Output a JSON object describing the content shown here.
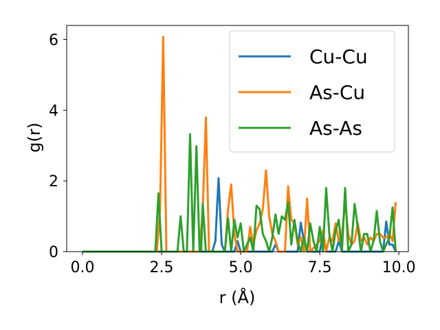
{
  "chart_data": {
    "type": "line",
    "title": "",
    "xlabel": "r (Å)",
    "ylabel": "g(r)",
    "xlim": [
      -0.5,
      10.3
    ],
    "ylim": [
      0,
      6.4
    ],
    "xticks": [
      {
        "value": 0.0,
        "label": "0.0"
      },
      {
        "value": 2.5,
        "label": "2.5"
      },
      {
        "value": 5.0,
        "label": "5.0"
      },
      {
        "value": 7.5,
        "label": "7.5"
      },
      {
        "value": 10.0,
        "label": "10.0"
      }
    ],
    "yticks": [
      {
        "value": 0,
        "label": "0"
      },
      {
        "value": 2,
        "label": "2"
      },
      {
        "value": 4,
        "label": "4"
      },
      {
        "value": 6,
        "label": "6"
      }
    ],
    "grid": false,
    "legend_position": "upper-right",
    "series": [
      {
        "name": "Cu-Cu",
        "color": "#1f77b4",
        "points": [
          [
            0.0,
            0
          ],
          [
            4.1,
            0
          ],
          [
            4.2,
            0.3
          ],
          [
            4.3,
            2.08
          ],
          [
            4.4,
            0.2
          ],
          [
            4.5,
            0
          ],
          [
            4.8,
            0
          ],
          [
            4.9,
            0.3
          ],
          [
            5.0,
            0
          ],
          [
            6.0,
            0
          ],
          [
            6.1,
            0.2
          ],
          [
            6.2,
            0
          ],
          [
            6.8,
            0
          ],
          [
            6.9,
            0.82
          ],
          [
            7.0,
            0.3
          ],
          [
            7.1,
            0
          ],
          [
            7.5,
            0
          ],
          [
            7.6,
            0.5
          ],
          [
            7.7,
            0
          ],
          [
            8.0,
            0
          ],
          [
            8.1,
            0.3
          ],
          [
            8.2,
            0
          ],
          [
            9.5,
            0
          ],
          [
            9.6,
            0.85
          ],
          [
            9.7,
            0.2
          ],
          [
            9.8,
            0.2
          ],
          [
            9.9,
            0
          ]
        ]
      },
      {
        "name": "As-Cu",
        "color": "#ff7f0e",
        "points": [
          [
            0.0,
            0
          ],
          [
            2.35,
            0
          ],
          [
            2.45,
            1.2
          ],
          [
            2.55,
            6.08
          ],
          [
            2.65,
            0
          ],
          [
            3.7,
            0
          ],
          [
            3.8,
            1.2
          ],
          [
            3.9,
            3.8
          ],
          [
            4.0,
            0
          ],
          [
            4.5,
            0
          ],
          [
            4.6,
            1.2
          ],
          [
            4.7,
            1.9
          ],
          [
            4.8,
            0.5
          ],
          [
            4.9,
            0
          ],
          [
            5.2,
            0
          ],
          [
            5.3,
            0.7
          ],
          [
            5.4,
            0.2
          ],
          [
            5.5,
            0.6
          ],
          [
            5.6,
            0.8
          ],
          [
            5.7,
            1.2
          ],
          [
            5.8,
            2.3
          ],
          [
            5.9,
            1.0
          ],
          [
            6.0,
            0.5
          ],
          [
            6.1,
            0.3
          ],
          [
            6.2,
            0
          ],
          [
            6.4,
            0
          ],
          [
            6.5,
            1.85
          ],
          [
            6.6,
            0.9
          ],
          [
            6.7,
            0.8
          ],
          [
            6.8,
            0.2
          ],
          [
            6.9,
            0.4
          ],
          [
            7.0,
            0
          ],
          [
            7.1,
            1.5
          ],
          [
            7.2,
            0
          ],
          [
            7.5,
            0.3
          ],
          [
            7.6,
            0.6
          ],
          [
            7.7,
            0
          ],
          [
            7.8,
            0.4
          ],
          [
            7.9,
            0.3
          ],
          [
            8.0,
            0.8
          ],
          [
            8.1,
            0.3
          ],
          [
            8.2,
            0.5
          ],
          [
            8.3,
            1.4
          ],
          [
            8.4,
            0.5
          ],
          [
            8.5,
            0.2
          ],
          [
            8.6,
            0.3
          ],
          [
            8.7,
            0.8
          ],
          [
            8.8,
            0.3
          ],
          [
            8.9,
            0.4
          ],
          [
            9.0,
            0.2
          ],
          [
            9.1,
            0.4
          ],
          [
            9.2,
            0.3
          ],
          [
            9.3,
            0.5
          ],
          [
            9.4,
            0.5
          ],
          [
            9.5,
            0.4
          ],
          [
            9.6,
            0.4
          ],
          [
            9.7,
            0.5
          ],
          [
            9.8,
            0.3
          ],
          [
            9.9,
            1.4
          ]
        ]
      },
      {
        "name": "As-As",
        "color": "#2ca02c",
        "points": [
          [
            0.0,
            0
          ],
          [
            2.3,
            0
          ],
          [
            2.4,
            1.65
          ],
          [
            2.5,
            0
          ],
          [
            3.0,
            0
          ],
          [
            3.1,
            1.0
          ],
          [
            3.2,
            0
          ],
          [
            3.3,
            0
          ],
          [
            3.4,
            3.32
          ],
          [
            3.5,
            0
          ],
          [
            3.6,
            2.98
          ],
          [
            3.7,
            0
          ],
          [
            3.75,
            0
          ],
          [
            3.8,
            1.35
          ],
          [
            3.9,
            0
          ],
          [
            4.5,
            0
          ],
          [
            4.6,
            0.95
          ],
          [
            4.7,
            0
          ],
          [
            4.8,
            0.9
          ],
          [
            4.9,
            0.4
          ],
          [
            5.0,
            0.8
          ],
          [
            5.1,
            0
          ],
          [
            5.3,
            0.4
          ],
          [
            5.4,
            0
          ],
          [
            5.5,
            1.3
          ],
          [
            5.6,
            1.2
          ],
          [
            5.7,
            0.5
          ],
          [
            5.8,
            0.3
          ],
          [
            5.9,
            0
          ],
          [
            6.0,
            0.4
          ],
          [
            6.1,
            1.05
          ],
          [
            6.2,
            0.5
          ],
          [
            6.3,
            1.0
          ],
          [
            6.4,
            0.9
          ],
          [
            6.5,
            1.4
          ],
          [
            6.6,
            0.2
          ],
          [
            6.7,
            0.9
          ],
          [
            6.8,
            0.3
          ],
          [
            6.9,
            0
          ],
          [
            7.0,
            0.4
          ],
          [
            7.1,
            0
          ],
          [
            7.2,
            0.8
          ],
          [
            7.3,
            0.3
          ],
          [
            7.4,
            0
          ],
          [
            7.5,
            0.7
          ],
          [
            7.6,
            0
          ],
          [
            7.7,
            1.8
          ],
          [
            7.8,
            0.5
          ],
          [
            7.9,
            0
          ],
          [
            8.0,
            0.6
          ],
          [
            8.1,
            0.9
          ],
          [
            8.2,
            0
          ],
          [
            8.3,
            1.8
          ],
          [
            8.4,
            0
          ],
          [
            8.5,
            0.2
          ],
          [
            8.6,
            1.35
          ],
          [
            8.7,
            0.7
          ],
          [
            8.8,
            0
          ],
          [
            8.9,
            0.5
          ],
          [
            9.0,
            0.5
          ],
          [
            9.1,
            0
          ],
          [
            9.2,
            0.3
          ],
          [
            9.3,
            1.15
          ],
          [
            9.4,
            0.3
          ],
          [
            9.5,
            0
          ],
          [
            9.6,
            0.2
          ],
          [
            9.7,
            0.4
          ],
          [
            9.8,
            1.25
          ],
          [
            9.9,
            0
          ]
        ]
      }
    ]
  }
}
